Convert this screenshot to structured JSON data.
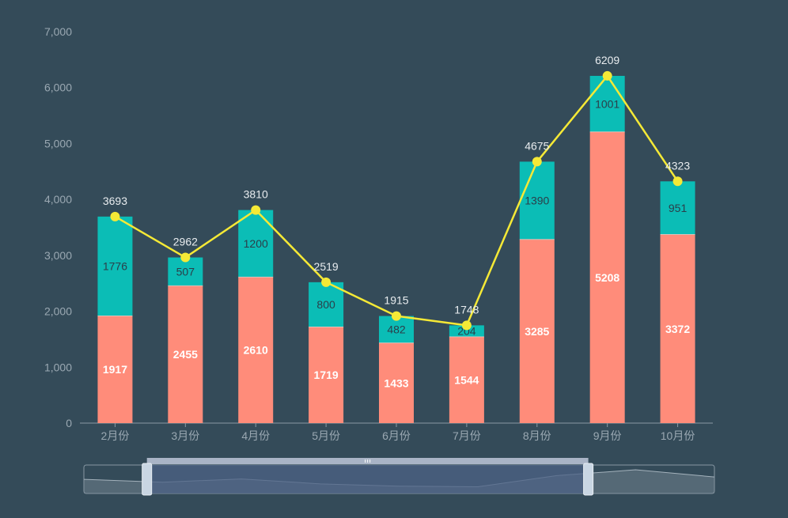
{
  "colors": {
    "background": "#344b59",
    "series_bottom": "#ff8c7a",
    "series_top": "#0bbdb6",
    "line": "#f5e936",
    "axis_label": "#9aa8b2",
    "total_label": "#e8ecef",
    "top_label": "#2b3e49",
    "bottom_label": "#ffffff",
    "zoom_selected": "#4c6186",
    "zoom_handle": "#c9d6e3"
  },
  "chart_data": {
    "type": "bar",
    "stacked": true,
    "categories": [
      "2月份",
      "3月份",
      "4月份",
      "5月份",
      "6月份",
      "7月份",
      "8月份",
      "9月份",
      "10月份"
    ],
    "series": [
      {
        "values": [
          1917,
          2455,
          2610,
          1719,
          1433,
          1544,
          3285,
          5208,
          3372
        ]
      },
      {
        "values": [
          1776,
          507,
          1200,
          800,
          482,
          204,
          1390,
          1001,
          951
        ]
      },
      {
        "type": "line",
        "values": [
          3693,
          2962,
          3810,
          2519,
          1915,
          1748,
          4675,
          6209,
          4323
        ]
      }
    ],
    "ylim": [
      0,
      7000
    ],
    "yticks": [
      "0",
      "1,000",
      "2,000",
      "3,000",
      "4,000",
      "5,000",
      "6,000",
      "7,000"
    ],
    "grid": false,
    "data_zoom": {
      "visible": true,
      "start_percent": 10,
      "end_percent": 80
    }
  }
}
